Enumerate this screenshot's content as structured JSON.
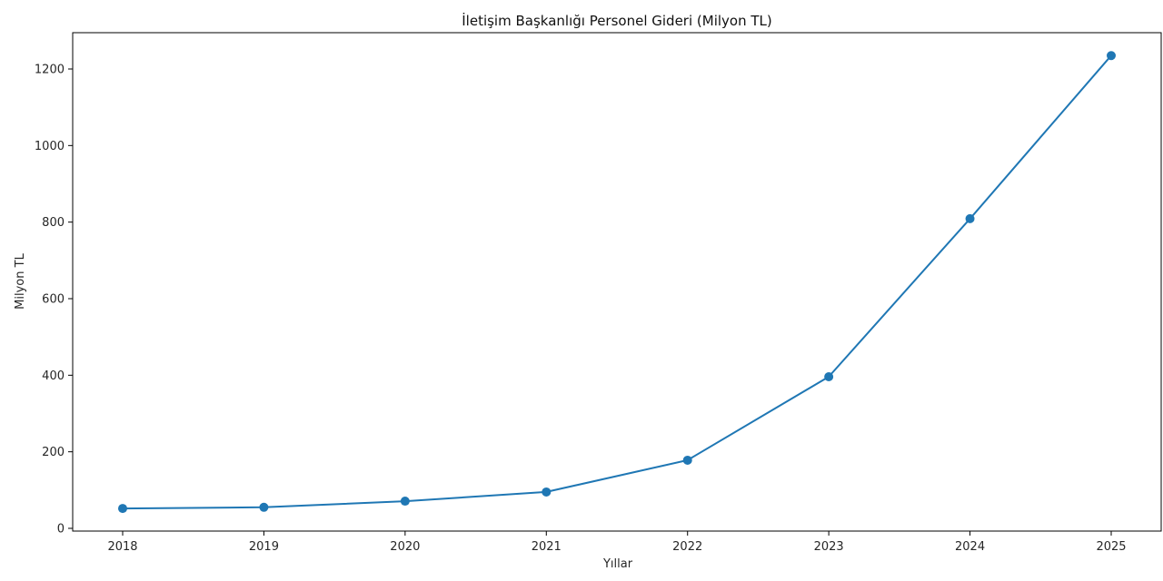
{
  "chart_data": {
    "type": "line",
    "title": "İletişim Başkanlığı Personel Gideri (Milyon TL)",
    "xlabel": "Yıllar",
    "ylabel": "Milyon TL",
    "categories": [
      "2018",
      "2019",
      "2020",
      "2021",
      "2022",
      "2023",
      "2024",
      "2025"
    ],
    "series": [
      {
        "name": "Personel Gideri",
        "values": [
          52,
          55,
          71,
          95,
          178,
          396,
          809,
          1235
        ],
        "color": "#1f77b4",
        "marker": "circle"
      }
    ],
    "yticks": [
      0,
      200,
      400,
      600,
      800,
      1000,
      1200
    ],
    "ylim": [
      -10,
      1295
    ],
    "grid": false,
    "legend": null
  }
}
